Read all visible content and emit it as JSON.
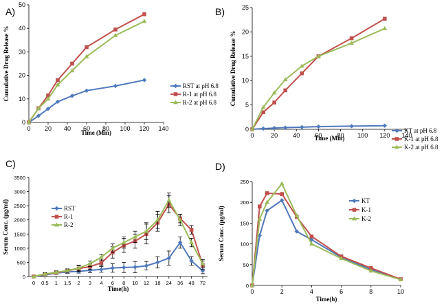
{
  "colors": {
    "blue": "#4f79bc",
    "red": "#c0504d",
    "green": "#9bbb59"
  },
  "chart_data": [
    {
      "id": "A",
      "panel_label": "A)",
      "type": "line",
      "xlabel": "Time (Min)",
      "ylabel": "Cumulative Drug Release %",
      "xlim": [
        0,
        140
      ],
      "ylim": [
        0,
        50
      ],
      "xticks": [
        "0",
        "20",
        "40",
        "60",
        "80",
        "100",
        "120",
        "140"
      ],
      "yticks": [
        "0",
        "10",
        "20",
        "30",
        "40",
        "50"
      ],
      "x": [
        0,
        10,
        20,
        30,
        45,
        60,
        90,
        120
      ],
      "series": [
        {
          "name": "RST at pH 6.8",
          "color": "blue",
          "marker": "diamond",
          "values": [
            0,
            2.8,
            5.8,
            8.8,
            11.3,
            13.5,
            15.5,
            18
          ]
        },
        {
          "name": "R-1 at pH 6.8",
          "color": "red",
          "marker": "square",
          "values": [
            0,
            6,
            11.5,
            18,
            25,
            32,
            39.5,
            46
          ]
        },
        {
          "name": "R-2 at pH 6.8",
          "color": "green",
          "marker": "triangle",
          "values": [
            0,
            6,
            10,
            16,
            22,
            28,
            37,
            43
          ]
        }
      ]
    },
    {
      "id": "B",
      "panel_label": "B)",
      "type": "line",
      "xlabel": "Time (Min)",
      "ylabel": "Cumulative Drug Release %",
      "xlim": [
        0,
        140
      ],
      "ylim": [
        0,
        25
      ],
      "xticks": [
        "0",
        "20",
        "40",
        "60",
        "80",
        "100",
        "120",
        "140"
      ],
      "yticks": [
        "0",
        "5",
        "10",
        "15",
        "20",
        "25"
      ],
      "x": [
        0,
        10,
        20,
        30,
        45,
        60,
        90,
        120
      ],
      "series": [
        {
          "name": "KT at pH 6.8",
          "color": "blue",
          "marker": "diamond",
          "values": [
            0,
            0.15,
            0.25,
            0.35,
            0.45,
            0.55,
            0.65,
            0.75
          ]
        },
        {
          "name": "K-1 at pH 6.8",
          "color": "red",
          "marker": "square",
          "values": [
            0,
            3.5,
            5.5,
            8,
            11.5,
            15,
            18.7,
            22.7
          ]
        },
        {
          "name": "K-2 at pH 6.8",
          "color": "green",
          "marker": "triangle",
          "values": [
            0,
            4.5,
            7.5,
            10.2,
            13,
            15,
            17.7,
            20.7
          ]
        }
      ]
    },
    {
      "id": "C",
      "panel_label": "C)",
      "type": "line",
      "xlabel": "Time(h)",
      "ylabel": "Serum Conc. (µg/ml)",
      "ylim": [
        0,
        3500
      ],
      "yticks": [
        "0",
        "500",
        "1000",
        "1500",
        "2000",
        "2500",
        "3000",
        "3500"
      ],
      "categories": [
        "0",
        "0.5",
        "1",
        "1.5",
        "2",
        "3",
        "4",
        "6",
        "8",
        "10",
        "12",
        "18",
        "24",
        "36",
        "48",
        "72"
      ],
      "series": [
        {
          "name": "RST",
          "color": "blue",
          "marker": "diamond",
          "values": [
            0,
            50,
            120,
            160,
            180,
            220,
            250,
            300,
            320,
            330,
            380,
            500,
            650,
            1200,
            550,
            200
          ],
          "errors": [
            0,
            30,
            40,
            50,
            60,
            80,
            100,
            150,
            180,
            200,
            150,
            200,
            250,
            200,
            150,
            100
          ]
        },
        {
          "name": "R-1",
          "color": "red",
          "marker": "square",
          "values": [
            0,
            80,
            130,
            200,
            280,
            350,
            480,
            850,
            1100,
            1250,
            1500,
            1900,
            2550,
            2050,
            1650,
            400
          ],
          "errors": [
            0,
            40,
            50,
            60,
            100,
            100,
            100,
            200,
            250,
            250,
            350,
            300,
            300,
            150,
            150,
            150
          ]
        },
        {
          "name": "R-2",
          "color": "green",
          "marker": "triangle",
          "values": [
            0,
            90,
            150,
            210,
            300,
            450,
            680,
            1000,
            1200,
            1400,
            1600,
            2000,
            2700,
            2000,
            1200,
            450
          ],
          "errors": [
            0,
            40,
            50,
            60,
            100,
            100,
            100,
            150,
            200,
            200,
            300,
            300,
            250,
            200,
            150,
            150
          ]
        }
      ]
    },
    {
      "id": "D",
      "panel_label": "D)",
      "type": "line",
      "xlabel": "Time(h)",
      "ylabel": "Serum Conc. (µg/ml)",
      "xlim": [
        0,
        10
      ],
      "ylim": [
        0,
        250
      ],
      "xticks": [
        "0",
        "2",
        "4",
        "6",
        "8",
        "10"
      ],
      "yticks": [
        "0",
        "50",
        "100",
        "150",
        "200",
        "250"
      ],
      "x": [
        0,
        0.5,
        1,
        2,
        3,
        4,
        6,
        8,
        10
      ],
      "series": [
        {
          "name": "KT",
          "color": "blue",
          "marker": "diamond",
          "values": [
            0,
            120,
            180,
            205,
            130,
            110,
            68,
            38,
            15
          ]
        },
        {
          "name": "K-1",
          "color": "red",
          "marker": "square",
          "values": [
            0,
            190,
            222,
            220,
            165,
            118,
            70,
            42,
            15
          ]
        },
        {
          "name": "K-2",
          "color": "green",
          "marker": "triangle",
          "values": [
            0,
            160,
            200,
            245,
            168,
            100,
            65,
            35,
            14
          ]
        }
      ]
    }
  ]
}
